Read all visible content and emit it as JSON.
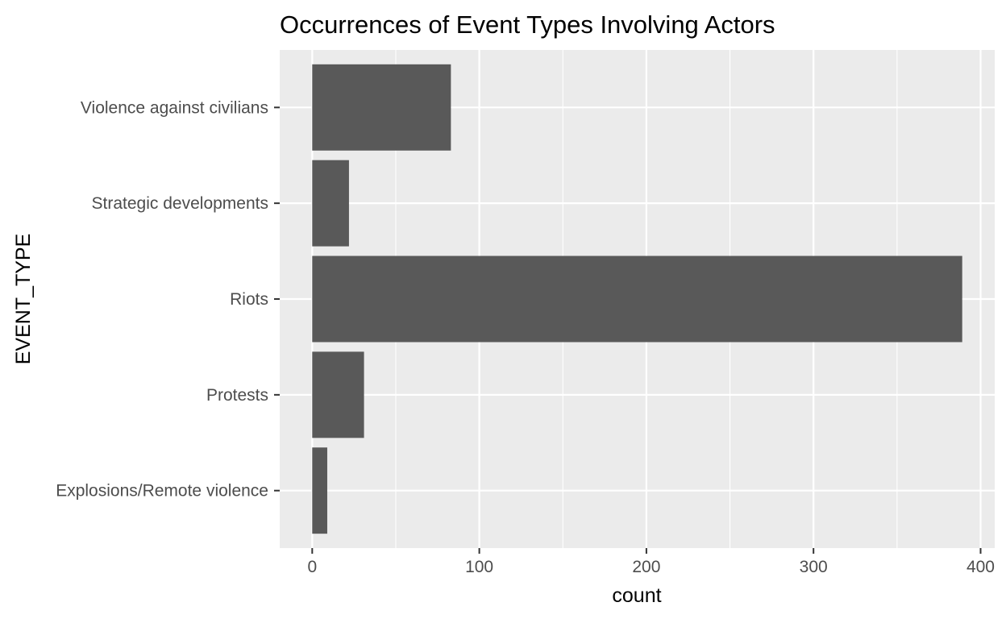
{
  "chart_data": {
    "type": "bar",
    "orientation": "horizontal",
    "title": "Occurrences of Event Types Involving Actors",
    "xlabel": "count",
    "ylabel": "EVENT_TYPE",
    "categories": [
      "Explosions/Remote violence",
      "Protests",
      "Riots",
      "Strategic developments",
      "Violence against civilians"
    ],
    "values": [
      9,
      31,
      389,
      22,
      83
    ],
    "xlim": [
      -19.45,
      408.45
    ],
    "xticks": [
      0,
      100,
      200,
      300,
      400
    ],
    "xtick_labels": [
      "0",
      "100",
      "200",
      "300",
      "400"
    ],
    "grid": true,
    "legend": "none",
    "colors": {
      "bar": "#595959",
      "panel": "#ebebeb",
      "grid": "#ffffff",
      "tick_text": "#4d4d4d",
      "tick_mark": "#333333"
    }
  }
}
